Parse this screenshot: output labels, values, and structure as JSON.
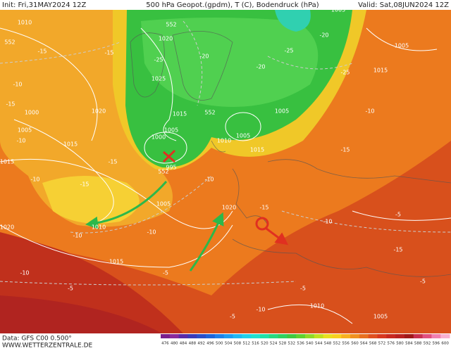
{
  "header": {
    "init": "Init: Fri,31MAY2024 12Z",
    "title": "500 hPa Geopot.(gpdm), T (C), Bodendruck (hPa)",
    "valid": "Valid: Sat,08JUN2024 12Z"
  },
  "footer": {
    "data": "Data: GFS C00 0.500°",
    "site": "WWW.WETTERZENTRALE.DE"
  },
  "colorbar": {
    "levels": [
      476,
      480,
      484,
      488,
      492,
      496,
      500,
      504,
      508,
      512,
      516,
      520,
      524,
      528,
      532,
      536,
      540,
      544,
      548,
      552,
      556,
      560,
      564,
      568,
      572,
      576,
      580,
      584,
      588,
      592,
      596,
      600
    ],
    "colors": [
      "#7a1f8c",
      "#8a2a9c",
      "#5a2aa8",
      "#3a3ab8",
      "#2a4ec8",
      "#1e64d8",
      "#1e80e8",
      "#1e9cf0",
      "#20b8f0",
      "#20d0e8",
      "#20e0d0",
      "#20e0a8",
      "#28d880",
      "#30d060",
      "#40c840",
      "#60d030",
      "#90d828",
      "#c0e020",
      "#e8e020",
      "#f8d020",
      "#f8b020",
      "#f09020",
      "#e87020",
      "#e05020",
      "#d83820",
      "#c82820",
      "#b82020",
      "#a01818",
      "#c83050",
      "#e05080",
      "#f080b0",
      "#f8b0d0"
    ]
  },
  "map": {
    "pressure_labels": [
      1010,
      1000,
      1005,
      1015,
      1020,
      1020,
      1025,
      1015,
      1005,
      1000,
      995,
      1005,
      1010,
      1015,
      1020,
      1015,
      1010,
      1005,
      1005,
      1005,
      1015,
      1010,
      1005,
      1015,
      1020,
      1005
    ],
    "temperature_labels": [
      -15,
      -20,
      -25,
      -25,
      -20,
      -25,
      -20,
      -15,
      -10,
      -15,
      -10,
      -10,
      -15,
      -10,
      -15,
      -10,
      -10,
      -15,
      -10,
      -15,
      -10,
      -15,
      -10,
      -5,
      -5,
      -5,
      -10,
      -5,
      -5,
      -5
    ],
    "geopotential_labels": [
      552,
      552,
      552,
      552
    ]
  }
}
